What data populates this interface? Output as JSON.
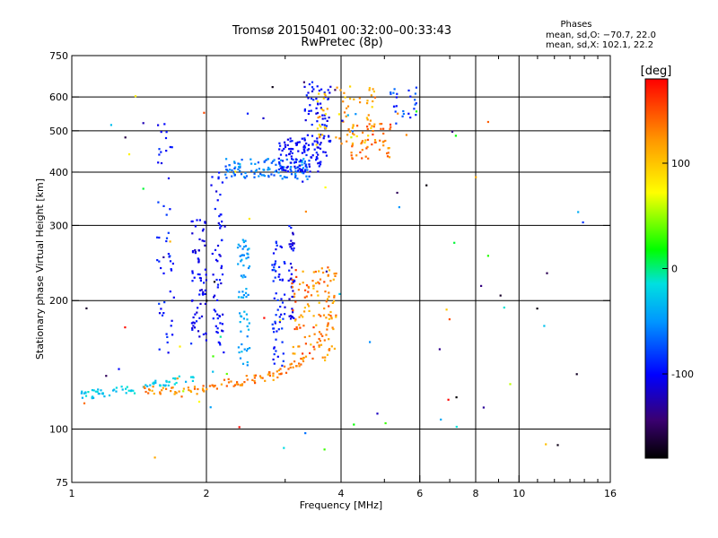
{
  "chart_data": {
    "type": "scatter",
    "title": "Tromsø 20150401 00:32:00–00:33:43",
    "subtitle": "RwPretec (8p)",
    "xlabel": "Frequency [MHz]",
    "ylabel": "Stationary phase Virtual Height [km]",
    "x_scale": "log",
    "y_scale": "log",
    "xlim": [
      1,
      16
    ],
    "ylim": [
      75,
      750
    ],
    "x_ticks": [
      {
        "value": 1,
        "label": "1"
      },
      {
        "value": 2,
        "label": "2"
      },
      {
        "value": 4,
        "label": "4"
      },
      {
        "value": 6,
        "label": "6"
      },
      {
        "value": 8,
        "label": "8"
      },
      {
        "value": 10,
        "label": "10"
      },
      {
        "value": 16,
        "label": "16"
      }
    ],
    "y_ticks": [
      {
        "value": 75,
        "label": "75"
      },
      {
        "value": 100,
        "label": "100"
      },
      {
        "value": 200,
        "label": "200"
      },
      {
        "value": 300,
        "label": "300"
      },
      {
        "value": 400,
        "label": "400"
      },
      {
        "value": 500,
        "label": "500"
      },
      {
        "value": 600,
        "label": "600"
      },
      {
        "value": 750,
        "label": "750"
      }
    ],
    "x_minor": [
      3,
      5,
      7,
      9,
      11,
      12,
      13,
      14,
      15
    ],
    "x_gridlines": [
      2,
      4,
      6,
      8,
      10
    ],
    "y_gridlines": [
      100,
      200,
      300,
      400,
      500,
      600
    ],
    "phase_legend": {
      "heading": "Phases",
      "line_o": "mean, sd,O: −70.7, 22.0",
      "line_x": "mean, sd,X: 102.1, 22.2"
    },
    "colorbar": {
      "label": "[deg]",
      "range": [
        -180,
        180
      ],
      "ticks": [
        {
          "value": 100,
          "label": "100"
        },
        {
          "value": 0,
          "label": "0"
        },
        {
          "value": -100,
          "label": "-100"
        }
      ]
    },
    "clusters": [
      {
        "name": "E-trace",
        "x": [
          1.05,
          1.9
        ],
        "y": [
          118,
          130
        ],
        "phase": [
          -40,
          -10
        ],
        "n": 70,
        "shape": "curve",
        "curve": [
          [
            1.05,
            120
          ],
          [
            1.3,
            123
          ],
          [
            1.6,
            128
          ],
          [
            1.9,
            132
          ]
        ]
      },
      {
        "name": "F-lower-O",
        "x": [
          1.5,
          3.8
        ],
        "y": [
          120,
          140
        ],
        "phase": [
          110,
          150
        ],
        "n": 120,
        "shape": "curve",
        "curve": [
          [
            1.45,
            123
          ],
          [
            1.8,
            122
          ],
          [
            2.2,
            128
          ],
          [
            2.8,
            133
          ],
          [
            3.3,
            145
          ],
          [
            3.7,
            165
          ],
          [
            3.85,
            200
          ],
          [
            3.9,
            240
          ]
        ]
      },
      {
        "name": "F-column-1.6",
        "x": [
          1.55,
          1.7
        ],
        "y": [
          150,
          520
        ],
        "phase": [
          -110,
          -80
        ],
        "n": 50
      },
      {
        "name": "F-column-1.9",
        "x": [
          1.85,
          2.0
        ],
        "y": [
          160,
          310
        ],
        "phase": [
          -120,
          -90
        ],
        "n": 70
      },
      {
        "name": "F-column-2.1",
        "x": [
          2.05,
          2.2
        ],
        "y": [
          150,
          400
        ],
        "phase": [
          -115,
          -85
        ],
        "n": 60
      },
      {
        "name": "F-column-2.4",
        "x": [
          2.35,
          2.5
        ],
        "y": [
          140,
          280
        ],
        "phase": [
          -60,
          -30
        ],
        "n": 65
      },
      {
        "name": "F-column-2.9",
        "x": [
          2.8,
          3.0
        ],
        "y": [
          140,
          290
        ],
        "phase": [
          -110,
          -80
        ],
        "n": 60
      },
      {
        "name": "F-column-3.1",
        "x": [
          3.05,
          3.15
        ],
        "y": [
          180,
          300
        ],
        "phase": [
          -120,
          -90
        ],
        "n": 40
      },
      {
        "name": "F-cusp-O",
        "x": [
          3.1,
          3.9
        ],
        "y": [
          145,
          240
        ],
        "phase": [
          100,
          160
        ],
        "n": 120
      },
      {
        "name": "F-upper",
        "x": [
          2.2,
          3.4
        ],
        "y": [
          385,
          430
        ],
        "phase": [
          -80,
          -40
        ],
        "n": 120
      },
      {
        "name": "F-upper-2",
        "x": [
          2.9,
          3.6
        ],
        "y": [
          400,
          480
        ],
        "phase": [
          -110,
          -90
        ],
        "n": 90
      },
      {
        "name": "F-top",
        "x": [
          3.3,
          3.8
        ],
        "y": [
          430,
          650
        ],
        "phase": [
          -115,
          -85
        ],
        "n": 80
      },
      {
        "name": "F-top-X",
        "x": [
          3.5,
          4.8
        ],
        "y": [
          450,
          640
        ],
        "phase": [
          80,
          140
        ],
        "n": 70
      },
      {
        "name": "F-top-X2",
        "x": [
          4.2,
          5.2
        ],
        "y": [
          430,
          520
        ],
        "phase": [
          110,
          160
        ],
        "n": 50
      },
      {
        "name": "F-top-right",
        "x": [
          5.0,
          5.9
        ],
        "y": [
          520,
          640
        ],
        "phase": [
          -100,
          -60
        ],
        "n": 25
      },
      {
        "name": "scatter",
        "x": [
          1.0,
          14.0
        ],
        "y": [
          85,
          650
        ],
        "phase": [
          -180,
          180
        ],
        "n": 90
      }
    ]
  }
}
